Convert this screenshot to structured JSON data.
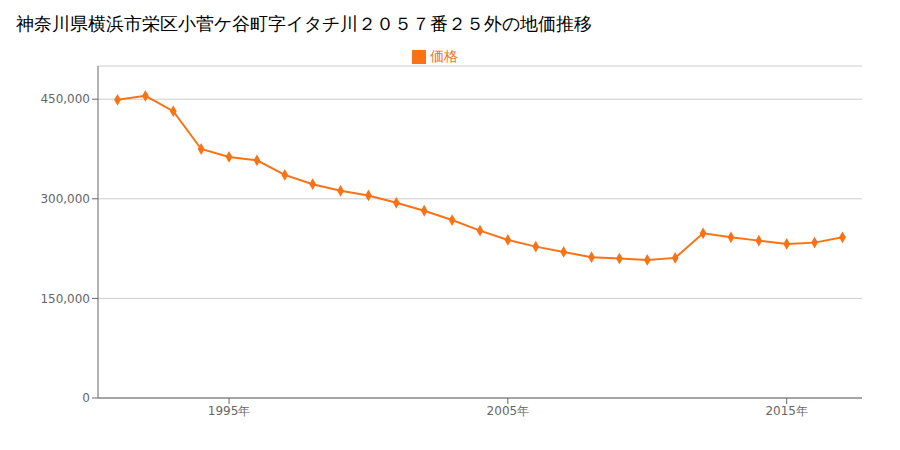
{
  "chart_data": {
    "type": "line",
    "title": "神奈川県横浜市栄区小菅ケ谷町字イタチ川２０５７番２５外の地価推移",
    "x": [
      1991,
      1992,
      1993,
      1994,
      1995,
      1996,
      1997,
      1998,
      1999,
      2000,
      2001,
      2002,
      2003,
      2004,
      2005,
      2006,
      2007,
      2008,
      2009,
      2010,
      2011,
      2012,
      2013,
      2014,
      2015,
      2016,
      2017
    ],
    "series": [
      {
        "name": "価格",
        "color": "#f97316",
        "marker": "diamond",
        "values": [
          449000,
          455000,
          432000,
          375000,
          363000,
          358000,
          336000,
          322000,
          312000,
          305000,
          294000,
          282000,
          268000,
          252000,
          238000,
          228000,
          220000,
          212000,
          210000,
          208000,
          211000,
          248000,
          242000,
          237000,
          232000,
          234000,
          242000
        ]
      }
    ],
    "xlim": [
      1990.3,
      2017.7
    ],
    "xticks": [
      {
        "value": 1995,
        "label": "1995年"
      },
      {
        "value": 2005,
        "label": "2005年"
      },
      {
        "value": 2015,
        "label": "2015年"
      }
    ],
    "ylim": [
      0,
      500000
    ],
    "yticks": [
      0,
      {
        "value": 150000,
        "label": "150,000"
      },
      {
        "value": 300000,
        "label": "300,000"
      },
      {
        "value": 450000,
        "label": "450,000"
      }
    ],
    "grid": true,
    "legend": "top"
  }
}
